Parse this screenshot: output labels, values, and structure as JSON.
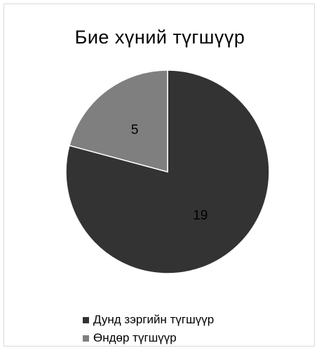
{
  "chart_data": {
    "type": "pie",
    "title": "Бие хүний түгшүүр",
    "slices": [
      {
        "label": "Дунд зэргийн түгшүүр",
        "value": 19,
        "data_label": "19",
        "color": "#333333"
      },
      {
        "label": "Өндөр түгшүүр",
        "value": 5,
        "data_label": "5",
        "color": "#7f7f7f"
      }
    ],
    "start_angle_deg": 0,
    "direction": "clockwise",
    "legend_position": "bottom",
    "slice_border_color": "#ffffff"
  }
}
